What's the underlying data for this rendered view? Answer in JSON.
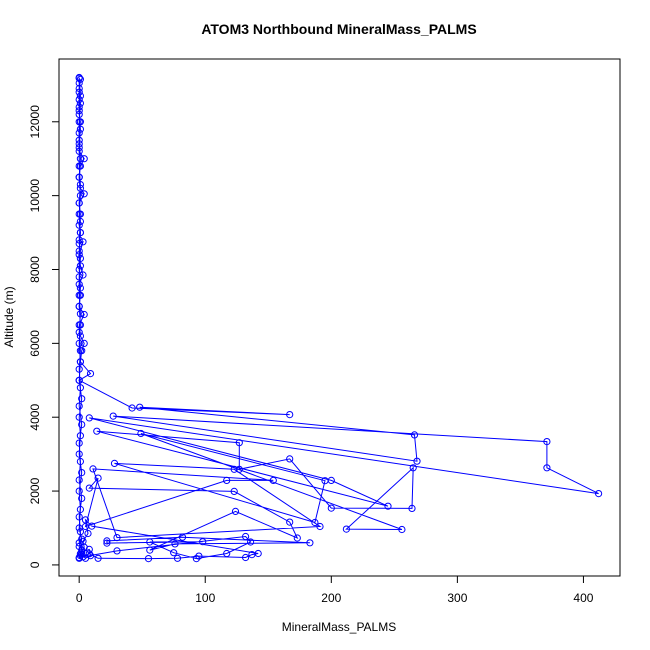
{
  "chart_data": {
    "type": "line",
    "title": "ATOM3 Northbound MineralMass_PALMS",
    "xlabel": "MineralMass_PALMS",
    "ylabel": "Altitude (m)",
    "xlim": [
      -16,
      429
    ],
    "ylim": [
      -300,
      13700
    ],
    "x_ticks": [
      0,
      100,
      200,
      300,
      400
    ],
    "y_ticks": [
      0,
      2000,
      4000,
      6000,
      8000,
      10000,
      12000
    ],
    "markers": "open-circle",
    "series": [
      {
        "color": "#0000ff",
        "points": [
          [
            0,
            13180
          ],
          [
            0,
            13050
          ],
          [
            0,
            12900
          ],
          [
            0,
            12600
          ],
          [
            0,
            12400
          ],
          [
            0,
            12200
          ],
          [
            1,
            12000
          ],
          [
            0,
            11700
          ],
          [
            0,
            11400
          ],
          [
            0,
            11200
          ],
          [
            4,
            11000
          ],
          [
            1,
            10800
          ],
          [
            0,
            10500
          ],
          [
            1,
            10200
          ],
          [
            4,
            10050
          ],
          [
            0,
            9800
          ],
          [
            1,
            9500
          ],
          [
            0,
            9200
          ],
          [
            1,
            9000
          ],
          [
            0,
            8700
          ],
          [
            3,
            8750
          ],
          [
            0,
            8400
          ],
          [
            1,
            8100
          ],
          [
            3,
            7850
          ],
          [
            0,
            7600
          ],
          [
            1,
            7300
          ],
          [
            0,
            7000
          ],
          [
            4,
            6780
          ],
          [
            0,
            6500
          ],
          [
            1,
            6200
          ],
          [
            4,
            6000
          ],
          [
            2,
            5800
          ],
          [
            1,
            5500
          ],
          [
            9,
            5180
          ],
          [
            0,
            5000
          ],
          [
            42,
            4250
          ],
          [
            167,
            4070
          ],
          [
            48,
            4270
          ],
          [
            266,
            3520
          ],
          [
            268,
            2810
          ],
          [
            27,
            4030
          ],
          [
            371,
            3340
          ],
          [
            371,
            2630
          ],
          [
            412,
            1930
          ],
          [
            8,
            3980
          ],
          [
            200,
            2290
          ],
          [
            245,
            1590
          ],
          [
            14,
            3620
          ],
          [
            127,
            3310
          ],
          [
            127,
            2590
          ],
          [
            167,
            2870
          ],
          [
            200,
            1540
          ],
          [
            264,
            1530
          ],
          [
            265,
            2630
          ],
          [
            212,
            970
          ],
          [
            256,
            960
          ],
          [
            49,
            3560
          ],
          [
            195,
            2280
          ],
          [
            187,
            1150
          ],
          [
            28,
            2750
          ],
          [
            123,
            2590
          ],
          [
            191,
            1040
          ],
          [
            30,
            740
          ],
          [
            11,
            2600
          ],
          [
            154,
            2290
          ],
          [
            117,
            2290
          ],
          [
            5,
            1040
          ],
          [
            15,
            2350
          ],
          [
            8,
            2080
          ],
          [
            123,
            1990
          ],
          [
            167,
            1160
          ],
          [
            173,
            730
          ],
          [
            124,
            1450
          ],
          [
            56,
            400
          ],
          [
            76,
            570
          ],
          [
            183,
            600
          ],
          [
            82,
            750
          ],
          [
            22,
            650
          ],
          [
            22,
            590
          ],
          [
            98,
            630
          ],
          [
            56,
            620
          ],
          [
            75,
            330
          ],
          [
            93,
            170
          ],
          [
            117,
            310
          ],
          [
            136,
            620
          ],
          [
            132,
            770
          ],
          [
            30,
            380
          ],
          [
            3,
            220
          ],
          [
            8,
            300
          ],
          [
            15,
            180
          ],
          [
            55,
            170
          ],
          [
            78,
            180
          ],
          [
            95,
            240
          ],
          [
            132,
            200
          ],
          [
            137,
            280
          ],
          [
            142,
            310
          ],
          [
            10,
            1050
          ],
          [
            5,
            1220
          ],
          [
            7,
            850
          ],
          [
            3,
            640
          ],
          [
            4,
            480
          ],
          [
            2,
            350
          ],
          [
            8,
            420
          ],
          [
            9,
            250
          ],
          [
            5,
            180
          ],
          [
            2,
            280
          ]
        ]
      },
      {
        "color": "#0000ff",
        "points": [
          [
            1,
            13150
          ],
          [
            0,
            12800
          ],
          [
            1,
            12500
          ],
          [
            0,
            12000
          ],
          [
            0,
            11500
          ],
          [
            1,
            11000
          ],
          [
            0,
            10500
          ],
          [
            1,
            10000
          ],
          [
            0,
            9500
          ],
          [
            1,
            9000
          ],
          [
            0,
            8500
          ],
          [
            0,
            8000
          ],
          [
            1,
            7500
          ],
          [
            0,
            7000
          ],
          [
            1,
            6500
          ],
          [
            0,
            6000
          ],
          [
            1,
            5500
          ],
          [
            0,
            5000
          ],
          [
            2,
            4500
          ],
          [
            0,
            4000
          ],
          [
            1,
            3500
          ],
          [
            0,
            3000
          ],
          [
            2,
            2500
          ],
          [
            0,
            2000
          ],
          [
            1,
            1500
          ],
          [
            0,
            1000
          ],
          [
            2,
            700
          ],
          [
            0,
            500
          ],
          [
            1,
            300
          ],
          [
            0,
            200
          ]
        ]
      },
      {
        "color": "#0000ff",
        "points": [
          [
            0,
            13200
          ],
          [
            1,
            12700
          ],
          [
            0,
            12300
          ],
          [
            1,
            11800
          ],
          [
            0,
            11300
          ],
          [
            0,
            10800
          ],
          [
            1,
            10300
          ],
          [
            0,
            9800
          ],
          [
            1,
            9300
          ],
          [
            0,
            8800
          ],
          [
            1,
            8300
          ],
          [
            0,
            7800
          ],
          [
            0,
            7300
          ],
          [
            1,
            6800
          ],
          [
            0,
            6300
          ],
          [
            1,
            5800
          ],
          [
            0,
            5300
          ],
          [
            1,
            4800
          ],
          [
            0,
            4300
          ],
          [
            2,
            3800
          ],
          [
            0,
            3300
          ],
          [
            1,
            2800
          ],
          [
            0,
            2300
          ],
          [
            2,
            1800
          ],
          [
            0,
            1300
          ],
          [
            1,
            900
          ],
          [
            0,
            600
          ],
          [
            2,
            400
          ],
          [
            1,
            250
          ],
          [
            0,
            180
          ]
        ]
      }
    ]
  }
}
